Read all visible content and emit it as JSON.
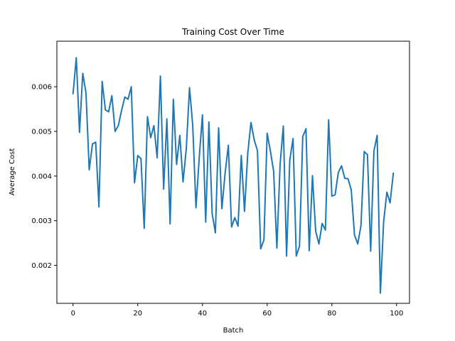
{
  "chart_data": {
    "type": "line",
    "title": "Training Cost Over Time",
    "xlabel": "Batch",
    "ylabel": "Average Cost",
    "xlim": [
      -5,
      104
    ],
    "ylim": [
      0.00115,
      0.00702
    ],
    "xticks": [
      0,
      20,
      40,
      60,
      80,
      100
    ],
    "yticks": [
      0.002,
      0.003,
      0.004,
      0.005,
      0.006
    ],
    "ytick_labels": [
      "0.002",
      "0.003",
      "0.004",
      "0.005",
      "0.006"
    ],
    "grid": false,
    "line_color": "#1f77b4",
    "series": [
      {
        "x": [
          0,
          1,
          2,
          3,
          4,
          5,
          6,
          7,
          8,
          9,
          10,
          11,
          12,
          13,
          14,
          15,
          16,
          17,
          18,
          19,
          20,
          21,
          22,
          23,
          24,
          25,
          26,
          27,
          28,
          29,
          30,
          31,
          32,
          33,
          34,
          35,
          36,
          37,
          38,
          39,
          40,
          41,
          42,
          43,
          44,
          45,
          46,
          47,
          48,
          49,
          50,
          51,
          52,
          53,
          54,
          55,
          56,
          57,
          58,
          59,
          60,
          61,
          62,
          63,
          64,
          65,
          66,
          67,
          68,
          69,
          70,
          71,
          72,
          73,
          74,
          75,
          76,
          77,
          78,
          79,
          80,
          81,
          82,
          83,
          84,
          85,
          86,
          87,
          88,
          89,
          90,
          91,
          92,
          93,
          94,
          95,
          96,
          97,
          98,
          99
        ],
        "y": [
          0.00584,
          0.00665,
          0.00498,
          0.0063,
          0.00586,
          0.00414,
          0.00472,
          0.00476,
          0.00331,
          0.00612,
          0.00548,
          0.00544,
          0.0058,
          0.005,
          0.00513,
          0.00547,
          0.00577,
          0.00572,
          0.006,
          0.00385,
          0.00446,
          0.00439,
          0.00283,
          0.00533,
          0.00486,
          0.00513,
          0.00441,
          0.00624,
          0.00371,
          0.00528,
          0.00293,
          0.00572,
          0.00426,
          0.00491,
          0.00387,
          0.00461,
          0.00598,
          0.00513,
          0.00329,
          0.00441,
          0.00537,
          0.00297,
          0.00521,
          0.00316,
          0.00273,
          0.00508,
          0.00327,
          0.00406,
          0.00469,
          0.00286,
          0.00307,
          0.00288,
          0.00446,
          0.00321,
          0.00451,
          0.0052,
          0.00481,
          0.00457,
          0.00237,
          0.00257,
          0.00496,
          0.00456,
          0.00411,
          0.00239,
          0.00426,
          0.00512,
          0.00221,
          0.00436,
          0.00484,
          0.00221,
          0.00243,
          0.00488,
          0.00506,
          0.00233,
          0.00401,
          0.00276,
          0.00248,
          0.00294,
          0.00279,
          0.00526,
          0.00355,
          0.00358,
          0.00408,
          0.00423,
          0.00395,
          0.00394,
          0.00369,
          0.00268,
          0.00248,
          0.00289,
          0.00455,
          0.00448,
          0.00232,
          0.00456,
          0.00491,
          0.00138,
          0.00297,
          0.00364,
          0.0034,
          0.00407
        ]
      }
    ]
  }
}
